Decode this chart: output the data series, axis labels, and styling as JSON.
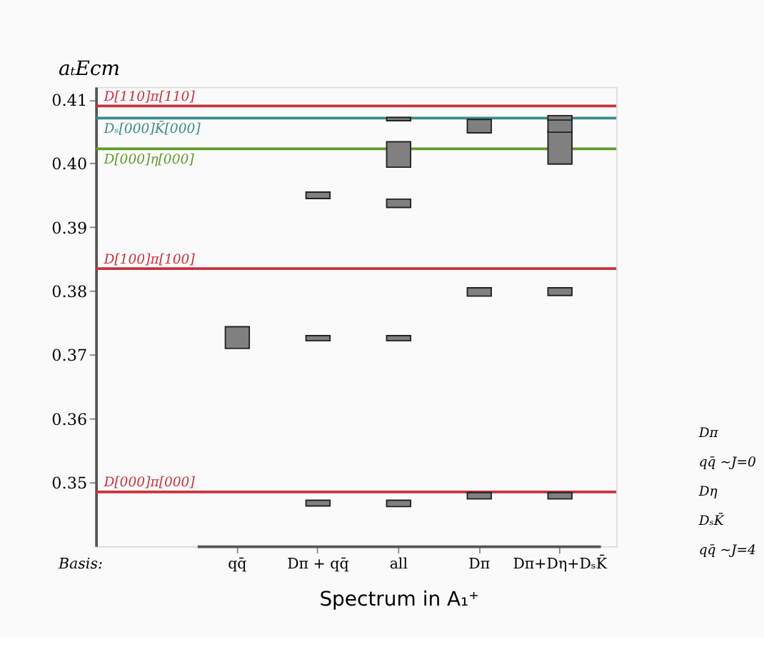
{
  "chart_data": {
    "type": "bar",
    "xlabel": "Spectrum in A₁⁺",
    "ylabel": "aₜEcm",
    "categories": [
      "qq̄",
      "Dπ + qq̄",
      "all",
      "Dπ",
      "Dπ+Dη+DₛK̄"
    ],
    "series": [
      {
        "color": "#808080",
        "base": [
          0.371,
          0.3463,
          0.3462,
          0.3474,
          0.3474
        ],
        "values": [
          0.0034,
          0.0009,
          0.001,
          0.001,
          0.001
        ]
      },
      {
        "color": "#808080",
        "base": [
          null,
          0.3722,
          0.3722,
          0.3792,
          0.3793
        ],
        "values": [
          null,
          0.0008,
          0.0008,
          0.0013,
          0.0012
        ]
      },
      {
        "color": "#808080",
        "base": [
          null,
          0.3945,
          0.3931,
          0.4048,
          0.3999
        ],
        "values": [
          null,
          0.001,
          0.0013,
          0.0021,
          0.0052
        ]
      },
      {
        "color": "#808080",
        "base": [
          null,
          null,
          0.3994,
          null,
          0.4049
        ],
        "values": [
          null,
          null,
          0.004,
          null,
          0.002
        ]
      },
      {
        "color": "#808080",
        "base": [
          null,
          null,
          0.4067,
          null,
          0.4068
        ],
        "values": [
          null,
          null,
          0.0005,
          null,
          0.0007
        ]
      }
    ],
    "ylim": [
      0.34,
      0.412
    ],
    "yticks": [
      0.35,
      0.36,
      0.37,
      0.38,
      0.39,
      {
        "value": 0.4,
        "label": "0.40"
      },
      0.41
    ],
    "ref_lines": [
      {
        "axis": "y",
        "value": 0.409,
        "label": "D[110]π[110]",
        "color": "#c8323c"
      },
      {
        "axis": "y",
        "value": 0.4071,
        "label": "Dₛ[000]K̄[000]",
        "color": "#3a8a8a"
      },
      {
        "axis": "y",
        "value": 0.4023,
        "label": "D[000]η[000]",
        "color": "#5f9a2c"
      },
      {
        "axis": "y",
        "value": 0.3835,
        "label": "D[100]π[100]",
        "color": "#c8323c"
      },
      {
        "axis": "y",
        "value": 0.3485,
        "label": "D[000]π[000]",
        "color": "#c8323c"
      }
    ],
    "annotations": [
      "Basis:",
      "Dπ",
      "qq̄ ~J=0",
      "Dη",
      "DₛK̄",
      "qq̄ ~J=4"
    ],
    "grid": false
  }
}
